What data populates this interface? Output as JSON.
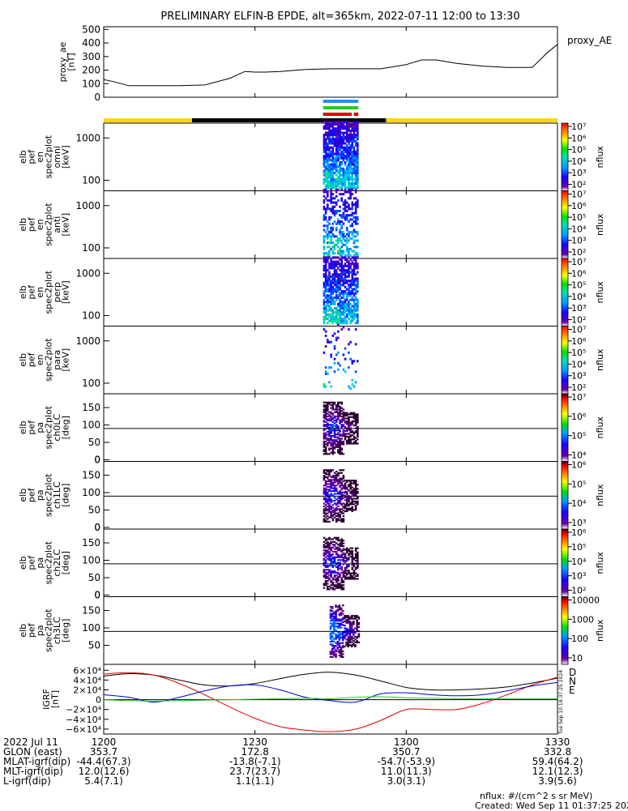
{
  "title": "PRELIMINARY ELFIN-B EPDE, alt=365km, 2022-07-11 12:00 to 13:30",
  "colors": {
    "yellow": "#ffd700",
    "black": "#000000",
    "blue": "#1e90ff",
    "green": "#22cc22",
    "red": "#e00000",
    "D": "#cc0000",
    "N": "#0000cc",
    "E": "#00aa00"
  },
  "time_axis": {
    "start_min": 0,
    "end_min": 90,
    "tick_labels": [
      "1200",
      "1230",
      "1300",
      "1330"
    ],
    "tick_minutes": [
      0,
      30,
      60,
      90
    ]
  },
  "top_panel": {
    "ylabel": [
      "proxy_ae",
      "[nT]"
    ],
    "legend": "proxy_AE",
    "yticks": [
      "0",
      "100",
      "200",
      "300",
      "400",
      "500"
    ],
    "ylim": [
      0,
      520
    ]
  },
  "orbit_bar": {
    "segments": [
      {
        "from": 0,
        "to": 17.5,
        "color": "yellow"
      },
      {
        "from": 17.5,
        "to": 56,
        "color": "black"
      },
      {
        "from": 56,
        "to": 90,
        "color": "yellow"
      }
    ]
  },
  "indicator_bars": [
    {
      "color": "blue",
      "from": 43.5,
      "to": 50.5
    },
    {
      "color": "green",
      "from": 43.5,
      "to": 50.5
    },
    {
      "color": "red",
      "from": 43.5,
      "to": 49.2
    },
    {
      "color": "red",
      "from": 49.6,
      "to": 50.5
    }
  ],
  "spectra": [
    {
      "label": [
        "elb",
        "pef",
        "en",
        "spec2plot",
        "omni",
        "[keV]"
      ],
      "yticks": [
        "100",
        "1000"
      ],
      "cbar_label": "nflux",
      "cbar_ticks": [
        "10²",
        "10³",
        "10⁴",
        "10⁵",
        "10⁶",
        "10⁷"
      ],
      "cbar_range": [
        1,
        7
      ],
      "intensity": 1.0
    },
    {
      "label": [
        "elb",
        "pef",
        "en",
        "spec2plot",
        "anti",
        "[keV]"
      ],
      "yticks": [
        "100",
        "1000"
      ],
      "cbar_label": "nflux",
      "cbar_ticks": [
        "10²",
        "10³",
        "10⁴",
        "10⁵",
        "10⁶",
        "10⁷"
      ],
      "cbar_range": [
        1,
        7
      ],
      "intensity": 0.55
    },
    {
      "label": [
        "elb",
        "pef",
        "en",
        "spec2plot",
        "perp",
        "[keV]"
      ],
      "yticks": [
        "100",
        "1000"
      ],
      "cbar_label": "nflux",
      "cbar_ticks": [
        "10²",
        "10³",
        "10⁴",
        "10⁵",
        "10⁶",
        "10⁷"
      ],
      "cbar_range": [
        1,
        7
      ],
      "intensity": 0.9
    },
    {
      "label": [
        "elb",
        "pef",
        "en",
        "spec2plot",
        "para",
        "[keV]"
      ],
      "yticks": [
        "100",
        "1000"
      ],
      "cbar_label": "nflux",
      "cbar_ticks": [
        "10²",
        "10³",
        "10⁴",
        "10⁵",
        "10⁶",
        "10⁷"
      ],
      "cbar_range": [
        1,
        7
      ],
      "intensity": 0.25
    }
  ],
  "pitch_angle": [
    {
      "label": [
        "elb",
        "pef",
        "pa",
        "spec2plot",
        "ch0LC",
        "[deg]"
      ],
      "yticks": [
        "0",
        "50",
        "100",
        "150"
      ],
      "cbar_label": "nflux",
      "cbar_ticks": [
        "10⁴",
        "10⁵",
        "10⁶",
        "10⁷"
      ],
      "cbar_range": [
        3.3,
        7.2
      ]
    },
    {
      "label": [
        "elb",
        "pef",
        "pa",
        "spec2plot",
        "ch1LC",
        "[deg]"
      ],
      "yticks": [
        "0",
        "50",
        "100",
        "150"
      ],
      "cbar_label": "nflux",
      "cbar_ticks": [
        "10³",
        "10⁴",
        "10⁵",
        "10⁶"
      ],
      "cbar_range": [
        2.7,
        6.5
      ]
    },
    {
      "label": [
        "elb",
        "pef",
        "pa",
        "spec2plot",
        "ch2LC",
        "[deg]"
      ],
      "yticks": [
        "0",
        "50",
        "100",
        "150"
      ],
      "cbar_label": "nflux",
      "cbar_ticks": [
        "10²",
        "10³",
        "10⁴",
        "10⁵",
        "10⁶"
      ],
      "cbar_range": [
        1.8,
        6.5
      ]
    },
    {
      "label": [
        "elb",
        "pef",
        "pa",
        "spec2plot",
        "ch3LC",
        "[deg]"
      ],
      "yticks": [
        "50",
        "100",
        "150"
      ],
      "cbar_label": "nflux",
      "cbar_ticks": [
        "10",
        "100",
        "1000",
        "10000"
      ],
      "cbar_range": [
        1,
        4.3
      ]
    }
  ],
  "igrf_panel": {
    "ylabel": [
      "IGRF",
      "[nT]"
    ],
    "ytick_labels": [
      "−6×10⁴",
      "−4×10⁴",
      "−2×10⁴",
      "0",
      "2×10⁴",
      "4×10⁴",
      "6×10⁴"
    ],
    "ytick_values": [
      -60000,
      -40000,
      -20000,
      0,
      20000,
      40000,
      60000
    ],
    "ylim": [
      -70000,
      72000
    ],
    "legend": [
      "D",
      "N",
      "E"
    ],
    "stamp": "Tue Sep 10 18:37:25 2024"
  },
  "chart_data": [
    {
      "type": "line",
      "title": "proxy_AE",
      "ylabel": "proxy_ae [nT]",
      "x": [
        0,
        2,
        5,
        10,
        15,
        20,
        25,
        28,
        30,
        32,
        35,
        40,
        45,
        50,
        55,
        60,
        63,
        66,
        70,
        75,
        80,
        85,
        88,
        90
      ],
      "values": [
        130,
        115,
        85,
        85,
        85,
        90,
        140,
        190,
        185,
        185,
        190,
        205,
        210,
        210,
        210,
        240,
        275,
        275,
        250,
        230,
        220,
        220,
        330,
        390
      ],
      "ylim": [
        0,
        520
      ]
    },
    {
      "type": "line",
      "title": "IGRF",
      "ylabel": "IGRF [nT]",
      "x": [
        0,
        5,
        10,
        15,
        20,
        25,
        30,
        35,
        40,
        45,
        50,
        55,
        60,
        65,
        70,
        75,
        80,
        85,
        90
      ],
      "series": [
        {
          "name": "black",
          "values": [
            48000,
            53000,
            50000,
            40000,
            30000,
            28000,
            33000,
            43000,
            52000,
            56000,
            50000,
            38000,
            25000,
            20000,
            20000,
            22000,
            26000,
            34000,
            44000
          ]
        },
        {
          "name": "D",
          "values": [
            52000,
            55000,
            50000,
            33000,
            10000,
            -15000,
            -38000,
            -55000,
            -62000,
            -65000,
            -60000,
            -42000,
            -20000,
            -20000,
            -20000,
            -8000,
            10000,
            30000,
            46000
          ]
        },
        {
          "name": "N",
          "values": [
            10000,
            5000,
            -5000,
            5000,
            18000,
            28000,
            30000,
            20000,
            5000,
            -2000,
            -5000,
            12000,
            14000,
            10000,
            8000,
            10000,
            18000,
            28000,
            35000
          ]
        },
        {
          "name": "E",
          "values": [
            0,
            -2000,
            -3000,
            -2000,
            -1000,
            0,
            1000,
            2000,
            3000,
            2000,
            5000,
            6000,
            4000,
            3000,
            2000,
            2000,
            2000,
            2000,
            2000
          ]
        }
      ],
      "ylim": [
        -70000,
        72000
      ]
    }
  ],
  "footer": {
    "rows": [
      {
        "label": "2022 Jul 11",
        "values": [
          "1200",
          "1230",
          "1300",
          "1330"
        ]
      },
      {
        "label": "GLON (east)",
        "values": [
          "353.7",
          "172.8",
          "350.7",
          "332.8"
        ]
      },
      {
        "label": "MLAT-igrf(dip)",
        "values": [
          "-44.4(67.3)",
          "-13.8(-7.1)",
          "-54.7(-53.9)",
          "59.4(64.2)"
        ]
      },
      {
        "label": "MLT-igrf(dip)",
        "values": [
          "12.0(12.6)",
          "23.7(23.7)",
          "11.0(11.3)",
          "12.1(12.3)"
        ]
      },
      {
        "label": "L-igrf(dip)",
        "values": [
          "5.4(7.1)",
          "1.1(1.1)",
          "3.0(3.1)",
          "3.9(5.6)"
        ]
      }
    ],
    "units": "nflux: #/(cm^2 s sr MeV)",
    "created": "Created: Wed Sep 11 01:37:25 2024"
  }
}
